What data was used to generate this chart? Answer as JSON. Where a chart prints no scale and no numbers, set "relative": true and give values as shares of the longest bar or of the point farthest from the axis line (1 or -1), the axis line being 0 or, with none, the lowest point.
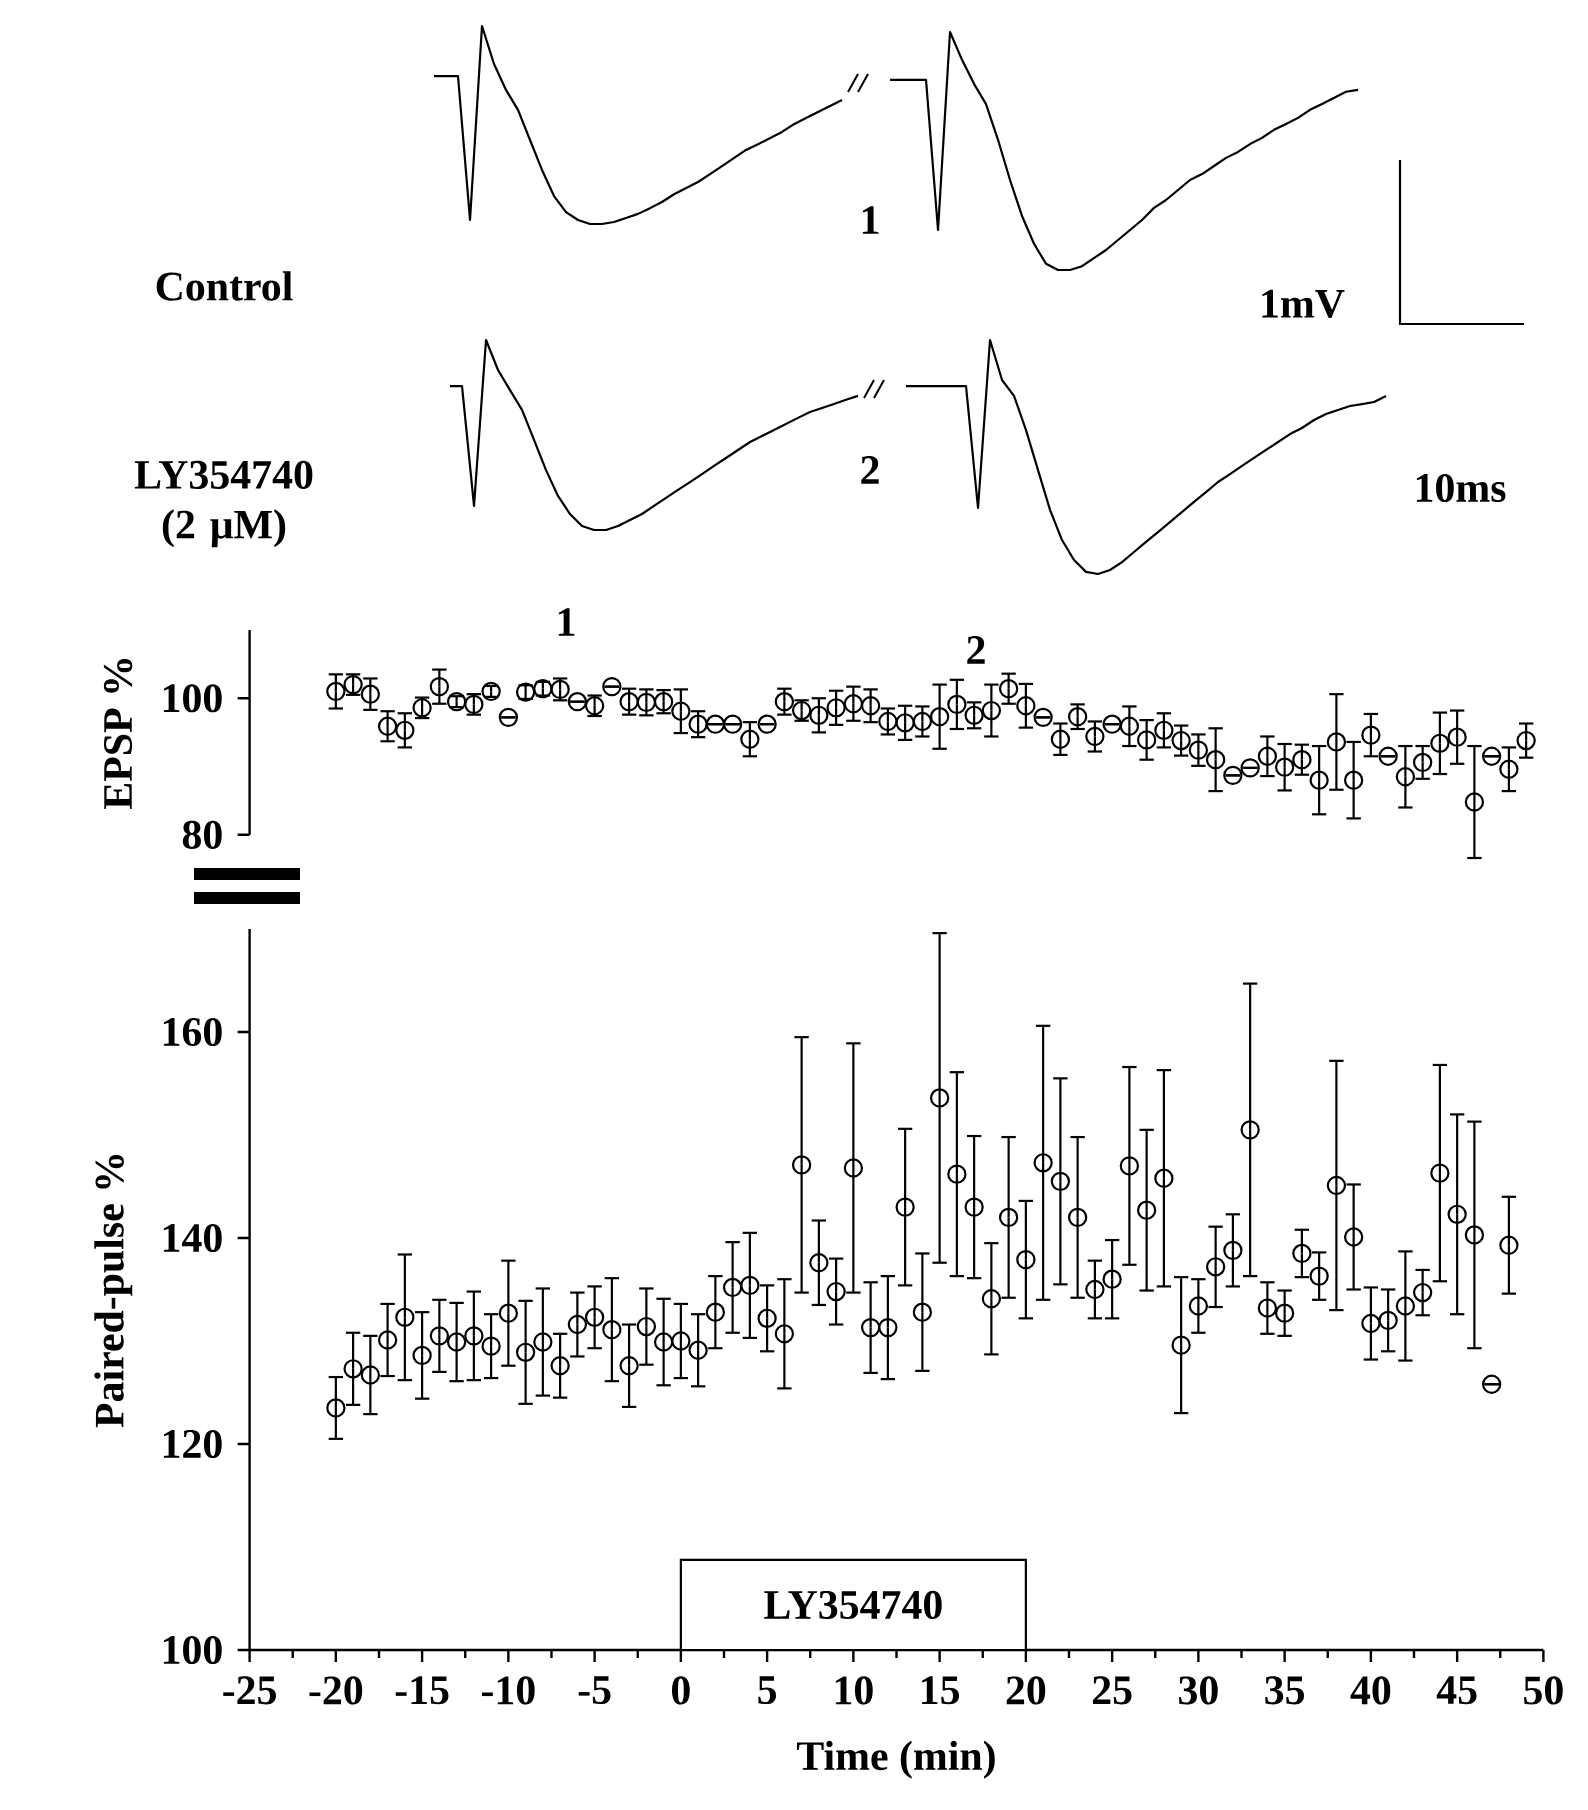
{
  "chart_data": [
    {
      "type": "line",
      "relative": true,
      "categories": [
        null,
        null,
        null,
        null,
        null,
        null,
        null,
        null,
        null,
        null,
        null,
        null,
        null,
        null,
        null,
        null,
        null,
        null,
        null,
        null,
        null,
        null,
        null,
        null,
        null,
        null,
        null,
        null,
        null,
        null,
        null,
        null,
        null,
        null,
        null
      ],
      "series": [
        {
          "color": "#000000",
          "values": [
            0.747,
            0.747,
            0.747,
            0.02,
            1,
            0.808,
            0.677,
            0.576,
            0.424,
            0.273,
            0.141,
            0.06,
            0.02,
            0,
            0,
            0.01,
            0.03,
            0.051,
            0.08,
            0.111,
            0.15,
            0.181,
            0.212,
            0.252,
            0.292,
            0.333,
            0.374,
            0.403,
            0.434,
            0.465,
            0.504,
            0.535,
            0.566,
            0.596,
            0.626
          ]
        }
      ],
      "annotations": [
        "Control",
        "1"
      ]
    },
    {
      "type": "line",
      "relative": true,
      "categories": [
        null,
        null,
        null,
        null,
        null,
        null,
        null,
        null,
        null,
        null,
        null,
        null,
        null,
        null,
        null,
        null,
        null,
        null,
        null,
        null,
        null,
        null,
        null,
        null,
        null,
        null,
        null,
        null,
        null,
        null,
        null,
        null,
        null,
        null,
        null,
        null,
        null,
        null,
        null,
        null
      ],
      "series": [
        {
          "color": "#000000",
          "values": [
            0.799,
            0.799,
            0.799,
            0.799,
            0.168,
            1,
            0.883,
            0.782,
            0.697,
            0.547,
            0.378,
            0.227,
            0.11,
            0.026,
            0,
            0,
            0.016,
            0.05,
            0.084,
            0.126,
            0.168,
            0.21,
            0.261,
            0.294,
            0.336,
            0.378,
            0.403,
            0.437,
            0.471,
            0.496,
            0.529,
            0.555,
            0.589,
            0.613,
            0.639,
            0.673,
            0.697,
            0.723,
            0.749,
            0.757
          ]
        }
      ],
      "annotations": [
        "1mV"
      ]
    },
    {
      "type": "line",
      "relative": true,
      "categories": [
        null,
        null,
        null,
        null,
        null,
        null,
        null,
        null,
        null,
        null,
        null,
        null,
        null,
        null,
        null,
        null,
        null,
        null,
        null,
        null,
        null,
        null,
        null,
        null,
        null,
        null,
        null,
        null,
        null,
        null,
        null,
        null,
        null,
        null,
        null
      ],
      "series": [
        {
          "color": "#000000",
          "values": [
            0.757,
            0.757,
            0.127,
            1,
            0.842,
            0.736,
            0.632,
            0.474,
            0.315,
            0.179,
            0.084,
            0.021,
            0,
            0,
            0.021,
            0.053,
            0.084,
            0.127,
            0.169,
            0.211,
            0.252,
            0.294,
            0.337,
            0.379,
            0.421,
            0.463,
            0.495,
            0.526,
            0.558,
            0.59,
            0.621,
            0.642,
            0.663,
            0.685,
            0.706
          ]
        }
      ],
      "annotations": [
        "LY354740 (2 μM)",
        "2"
      ]
    },
    {
      "type": "line",
      "relative": true,
      "categories": [
        null,
        null,
        null,
        null,
        null,
        null,
        null,
        null,
        null,
        null,
        null,
        null,
        null,
        null,
        null,
        null,
        null,
        null,
        null,
        null,
        null,
        null,
        null,
        null,
        null,
        null,
        null,
        null,
        null,
        null,
        null,
        null,
        null,
        null,
        null,
        null,
        null,
        null,
        null,
        null,
        null
      ],
      "series": [
        {
          "color": "#000000",
          "values": [
            0.803,
            0.803,
            0.803,
            0.803,
            0.803,
            0.803,
            0.282,
            1,
            0.829,
            0.761,
            0.615,
            0.444,
            0.274,
            0.145,
            0.06,
            0.009,
            0,
            0.017,
            0.051,
            0.094,
            0.137,
            0.179,
            0.222,
            0.265,
            0.308,
            0.35,
            0.393,
            0.427,
            0.462,
            0.496,
            0.53,
            0.564,
            0.598,
            0.624,
            0.658,
            0.684,
            0.701,
            0.718,
            0.726,
            0.735,
            0.761
          ]
        }
      ],
      "annotations": [
        "10ms"
      ]
    },
    {
      "type": "scatter",
      "ylabel": "EPSP %",
      "xlim": [
        -25,
        50
      ],
      "ylim": [
        80,
        110
      ],
      "yticks": [
        80,
        100
      ],
      "tick_labels": "y",
      "marker": "circle",
      "x": [
        -20,
        -19,
        -18,
        -17,
        -16,
        -15,
        -14,
        -13,
        -12,
        -11,
        -10,
        -9,
        -8,
        -7,
        -6,
        -5,
        -4,
        -3,
        -2,
        -1,
        0,
        1,
        2,
        3,
        4,
        5,
        6,
        7,
        8,
        9,
        10,
        11,
        12,
        13,
        14,
        15,
        16,
        17,
        18,
        19,
        20,
        21,
        22,
        23,
        24,
        25,
        26,
        27,
        28,
        29,
        30,
        31,
        32,
        33,
        34,
        35,
        36,
        37,
        38,
        39,
        40,
        41,
        42,
        43,
        44,
        45,
        46,
        47,
        48,
        49
      ],
      "series": [
        {
          "color": "#000000",
          "values": [
            101.0,
            102.0,
            100.6,
            95.9,
            95.3,
            98.6,
            101.7,
            99.5,
            99.1,
            101.0,
            97.2,
            100.9,
            101.4,
            101.3,
            99.5,
            98.9,
            101.7,
            99.5,
            99.4,
            99.5,
            98.1,
            96.2,
            96.2,
            96.2,
            94.0,
            96.2,
            99.5,
            98.2,
            97.5,
            98.6,
            99.2,
            98.9,
            96.6,
            96.4,
            96.6,
            97.3,
            99.1,
            97.5,
            98.2,
            101.4,
            98.9,
            97.2,
            94.0,
            97.3,
            94.4,
            96.2,
            95.9,
            93.9,
            95.3,
            93.8,
            92.4,
            91.0,
            88.7,
            89.8,
            91.5,
            89.9,
            91.0,
            88.0,
            93.6,
            88.0,
            94.6,
            91.5,
            88.5,
            90.6,
            93.4,
            94.3,
            84.8,
            91.5,
            89.6,
            93.8
          ],
          "errors": [
            2.5,
            1.5,
            2.3,
            2.2,
            2.5,
            1.5,
            2.5,
            0.8,
            1.5,
            0.8,
            null,
            1.0,
            1.0,
            1.6,
            null,
            1.5,
            null,
            1.9,
            1.9,
            1.7,
            3.2,
            1.9,
            null,
            null,
            2.5,
            null,
            1.9,
            1.5,
            2.5,
            2.5,
            2.5,
            2.4,
            1.9,
            2.5,
            2.2,
            4.7,
            3.6,
            1.9,
            3.8,
            2.2,
            3.2,
            null,
            2.3,
            1.8,
            2.2,
            null,
            2.9,
            2.9,
            2.5,
            2.2,
            2.3,
            4.6,
            null,
            null,
            2.9,
            3.4,
            2.2,
            5.0,
            7.0,
            5.6,
            3.1,
            null,
            4.5,
            2.4,
            4.5,
            3.9,
            8.2,
            null,
            3.2,
            2.5
          ]
        }
      ],
      "annotations": [
        "1",
        "2"
      ]
    },
    {
      "type": "scatter",
      "xlabel": "Time (min)",
      "ylabel": "Paired-pulse %",
      "xlim": [
        -25,
        50
      ],
      "ylim": [
        100,
        170
      ],
      "xticks": [
        -25,
        -20,
        -15,
        -10,
        -5,
        0,
        5,
        10,
        15,
        20,
        25,
        30,
        35,
        40,
        45,
        50
      ],
      "yticks": [
        100,
        120,
        140,
        160
      ],
      "marker": "circle",
      "x": [
        -20,
        -19,
        -18,
        -17,
        -16,
        -15,
        -14,
        -13,
        -12,
        -11,
        -10,
        -9,
        -8,
        -7,
        -6,
        -5,
        -4,
        -3,
        -2,
        -1,
        0,
        1,
        2,
        3,
        4,
        5,
        6,
        7,
        8,
        9,
        10,
        11,
        12,
        13,
        14,
        15,
        16,
        17,
        18,
        19,
        20,
        21,
        22,
        23,
        24,
        25,
        26,
        27,
        28,
        29,
        30,
        31,
        32,
        33,
        34,
        35,
        36,
        37,
        38,
        39,
        40,
        41,
        42,
        43,
        44,
        45,
        46,
        47,
        48
      ],
      "series": [
        {
          "color": "#000000",
          "values": [
            123.5,
            127.3,
            126.7,
            130.1,
            132.3,
            128.6,
            130.5,
            129.9,
            130.5,
            129.5,
            132.7,
            128.9,
            129.9,
            127.6,
            131.6,
            132.3,
            131.1,
            127.6,
            131.4,
            129.9,
            130.0,
            129.1,
            132.8,
            135.2,
            135.4,
            132.2,
            130.7,
            147.1,
            137.6,
            134.8,
            146.8,
            131.3,
            131.3,
            143.0,
            132.8,
            153.6,
            146.2,
            143.0,
            134.1,
            142.0,
            137.9,
            147.3,
            145.5,
            142.0,
            135.0,
            136.0,
            147.0,
            142.7,
            145.8,
            129.6,
            133.4,
            137.2,
            138.8,
            150.5,
            133.2,
            132.7,
            138.5,
            136.3,
            145.1,
            140.1,
            131.7,
            132.0,
            133.4,
            134.7,
            146.3,
            142.3,
            140.3,
            125.8,
            139.3
          ],
          "errors": [
            3.0,
            3.5,
            3.8,
            3.5,
            6.1,
            4.2,
            3.5,
            3.8,
            4.3,
            3.1,
            5.1,
            5.0,
            5.2,
            3.1,
            3.1,
            3.0,
            5.0,
            4.0,
            3.7,
            4.2,
            3.6,
            3.5,
            3.5,
            4.4,
            5.1,
            3.2,
            5.3,
            12.4,
            4.1,
            3.2,
            12.1,
            4.4,
            5.0,
            7.6,
            5.7,
            16.0,
            9.9,
            6.9,
            5.4,
            7.8,
            5.7,
            13.3,
            10.0,
            7.8,
            2.8,
            3.8,
            9.6,
            7.8,
            10.5,
            6.6,
            2.6,
            3.9,
            3.5,
            14.2,
            2.5,
            2.2,
            2.3,
            2.3,
            12.1,
            5.1,
            3.5,
            3.0,
            5.3,
            2.2,
            10.5,
            9.7,
            11.0,
            null,
            4.7
          ]
        }
      ],
      "bands": [
        {
          "axis": "x",
          "from": 0,
          "to": 20,
          "label": "LY354740"
        }
      ]
    }
  ]
}
